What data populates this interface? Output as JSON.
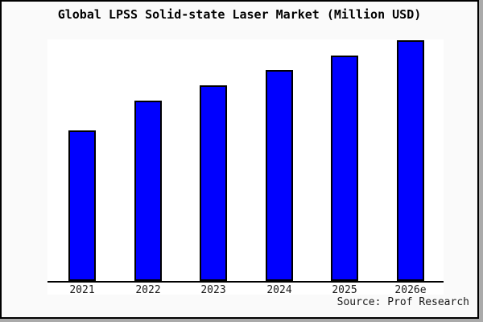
{
  "title": "Global LPSS Solid-state Laser Market (Million USD)",
  "source_note": "Source: Prof Research",
  "colors": {
    "bar_fill": "#0000ff",
    "bar_border": "#000000",
    "frame_background": "#fafafa",
    "plot_background": "#ffffff",
    "frame_border": "#000000",
    "shadow": "#aaaaaa",
    "text": "#000000"
  },
  "chart_data": {
    "type": "bar",
    "title": "Global LPSS Solid-state Laser Market (Million USD)",
    "categories": [
      "2021",
      "2022",
      "2023",
      "2024",
      "2025",
      "2026e"
    ],
    "values": [
      62.6,
      75.0,
      81.3,
      87.6,
      93.7,
      100
    ],
    "value_unit": "percent of tallest bar (chart shows no y-axis ticks, labels or gridlines; heights estimated from pixels)",
    "series_color": "#0000ff",
    "xlabel": "",
    "ylabel": "",
    "y_axis_visible": false,
    "grid": false,
    "legend": "none",
    "annotations": [
      "Source: Prof Research"
    ]
  }
}
